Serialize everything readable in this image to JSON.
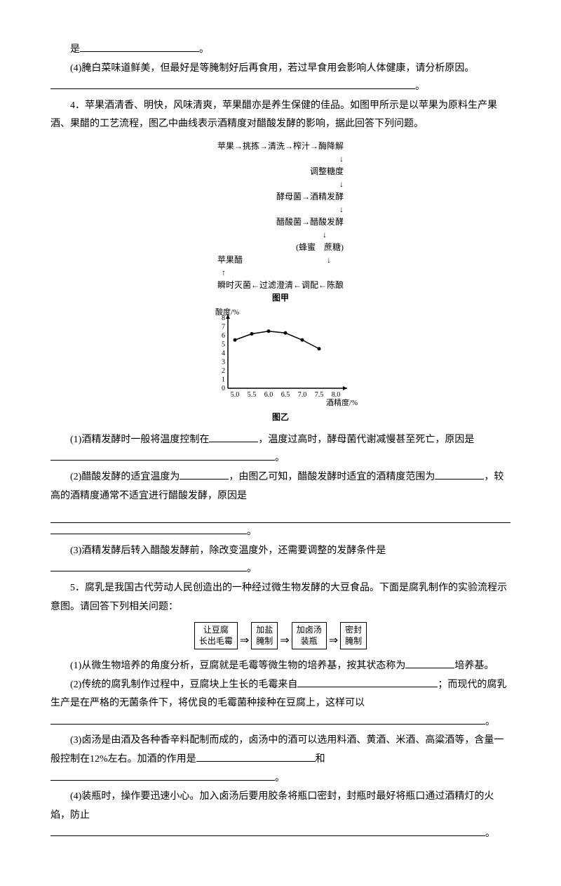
{
  "header": {
    "line1_prefix": "是",
    "line1_suffix": "。",
    "q4_label": "(4)腌白菜味道鲜美，但最好是等腌制好后再食用，若过早食用会影响人体健康，请分析原因。",
    "q4_suffix": "。"
  },
  "sec4": {
    "intro": "4．苹果酒清香、明快，风味清爽，苹果醋亦是养生保健的佳品。如图甲所示是以苹果为原料生产果酒、果醋的工艺流程，图乙中曲线表示酒精度对醋酸发酵的影响，据此回答下列问题。",
    "q1": "(1)酒精发酵时一般将温度控制在",
    "q1_mid": "，温度过高时，酵母菌代谢减慢甚至死亡，原因是",
    "q1_end": "。",
    "q2": "(2)醋酸发酵的适宜温度为",
    "q2_mid1": "，由图乙可知，醋酸发酵时适宜的酒精度范围为",
    "q2_mid2": "，较高的酒精度通常不适宜进行醋酸发酵，原因是",
    "q2_end": "。",
    "q3": "(3)酒精发酵后转入醋酸发酵前，除改变温度外，还需要调整的发酵条件是",
    "q3_end": "。"
  },
  "sec5": {
    "intro": "5．腐乳是我国古代劳动人民创造出的一种经过微生物发酵的大豆食品。下面是腐乳制作的实验流程示意图。请回答下列相关问题：",
    "q1": "(1)从微生物培养的角度分析，豆腐就是毛霉等微生物的培养基，按其状态称为",
    "q1_end": "培养基。",
    "q2": "(2)传统的腐乳制作过程中，豆腐块上生长的毛霉来自",
    "q2_end": "；而现代的腐乳生产是在严格的无菌条件下，将优良的毛霉菌种接种在豆腐上，这样可以",
    "q2_end2": "。",
    "q3": "(3)卤汤是由酒及各种香辛料配制而成的，卤汤中的酒可以选用料酒、黄酒、米酒、高粱酒等，含量一般控制在12%左右。加酒的作用是",
    "q3_mid": "和",
    "q3_end": "。",
    "q4": "(4)装瓶时，操作要迅速小心。加入卤汤后要用胶条将瓶口密封，封瓶时最好将瓶口通过酒精灯的火焰，防止",
    "q4_end": "。"
  },
  "flowchart_jia": {
    "r1": "苹果→挑拣→清洗→榨汁→酶降解",
    "r2": "调整糖度",
    "r3l": "酵母菌→",
    "r3r": "酒精发酵",
    "r4l": "醋酸菌→",
    "r4r": "醋酸发酵",
    "r5": "(蜂蜜　蔗糖)",
    "r6": "苹果醋",
    "r7": "瞬时灭菌←过滤澄清←调配←陈酿",
    "caption": "图甲"
  },
  "chart_yi": {
    "caption": "图乙",
    "ylabel": "酸度/%",
    "xlabel": "酒精度/%",
    "yticks": [
      "8",
      "7",
      "6",
      "5",
      "4",
      "3",
      "2",
      "1",
      "0"
    ],
    "xticks": [
      "5.0",
      "5.5",
      "6.0",
      "6.5",
      "7.0",
      "7.5",
      "8.0"
    ],
    "points": [
      [
        5.0,
        5.5
      ],
      [
        5.5,
        6.2
      ],
      [
        6.0,
        6.5
      ],
      [
        6.5,
        6.3
      ],
      [
        7.0,
        5.5
      ],
      [
        7.5,
        4.5
      ]
    ],
    "line_color": "#000",
    "bg": "#fff"
  },
  "flow5": {
    "b1": "让豆腐\n长出毛霉",
    "b2": "加盐\n腌制",
    "b3": "加卤汤\n装瓶",
    "b4": "密封\n腌制"
  }
}
